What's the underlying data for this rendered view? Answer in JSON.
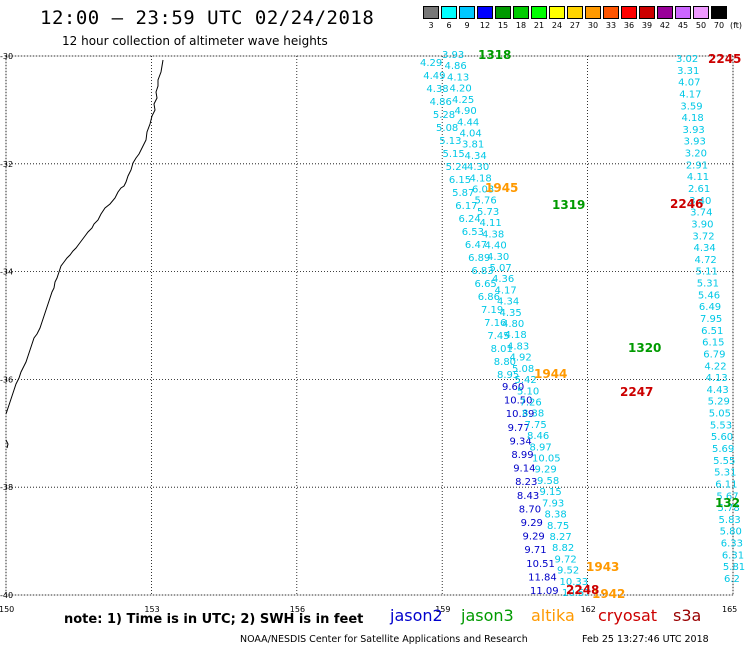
{
  "header": {
    "title": "12:00 – 23:59 UTC 02/24/2018",
    "subtitle": "12 hour collection of altimeter wave heights"
  },
  "legend": {
    "unit": "(ft)",
    "bins": [
      {
        "label": "3",
        "color": "#777777"
      },
      {
        "label": "6",
        "color": "#00ffff"
      },
      {
        "label": "9",
        "color": "#00c8ff"
      },
      {
        "label": "12",
        "color": "#0000ff"
      },
      {
        "label": "15",
        "color": "#009a00"
      },
      {
        "label": "18",
        "color": "#00cc00"
      },
      {
        "label": "21",
        "color": "#00ff00"
      },
      {
        "label": "24",
        "color": "#ffff00"
      },
      {
        "label": "27",
        "color": "#ffd400"
      },
      {
        "label": "30",
        "color": "#ff9900"
      },
      {
        "label": "33",
        "color": "#ff5500"
      },
      {
        "label": "36",
        "color": "#ff0000"
      },
      {
        "label": "39",
        "color": "#cc0000"
      },
      {
        "label": "42",
        "color": "#990099"
      },
      {
        "label": "45",
        "color": "#cc66ff"
      },
      {
        "label": "50",
        "color": "#ee99ff"
      },
      {
        "label": "70",
        "color": "#000000"
      }
    ]
  },
  "axes": {
    "lat_labels": [
      "-30",
      "-32",
      "-34",
      "-36",
      "-38",
      "-40"
    ],
    "lon_labels": [
      "150",
      "153",
      "156",
      "159",
      "162",
      "165"
    ]
  },
  "passes": [
    {
      "time": "1318",
      "sat": "jason3"
    },
    {
      "time": "1319",
      "sat": "jason3"
    },
    {
      "time": "1320",
      "sat": "jason3"
    },
    {
      "time": "132",
      "sat": "jason3"
    },
    {
      "time": "1942",
      "sat": "altika"
    },
    {
      "time": "1943",
      "sat": "altika"
    },
    {
      "time": "1944",
      "sat": "altika"
    },
    {
      "time": "1945",
      "sat": "altika"
    },
    {
      "time": "2245",
      "sat": "cryosat"
    },
    {
      "time": "2246",
      "sat": "cryosat"
    },
    {
      "time": "2247",
      "sat": "cryosat"
    },
    {
      "time": "2248",
      "sat": "cryosat"
    }
  ],
  "tracks": {
    "t1": [
      "4.29",
      "4.49",
      "4.38",
      "4.86",
      "5.28",
      "5.08",
      "5.13",
      "5.15",
      "5.24",
      "6.15",
      "5.87",
      "6.17",
      "6.24",
      "6.53",
      "6.47",
      "6.89",
      "6.83",
      "6.65",
      "6.86",
      "7.19",
      "7.16",
      "7.45",
      "8.01",
      "8.80",
      "8.95"
    ],
    "t1b": [
      "9.60",
      "10.50",
      "10.39",
      "9.77",
      "9.34",
      "8.99",
      "9.14",
      "8.23",
      "8.43",
      "8.70",
      "9.29",
      "9.29",
      "9.71",
      "10.51",
      "11.84",
      "11.09"
    ],
    "t2": [
      "3.93",
      "4.86",
      "4.13",
      "4.20",
      "4.25",
      "4.90",
      "4.44",
      "4.04",
      "3.81",
      "4.34",
      "4.30",
      "4.18",
      "6.03",
      "5.76",
      "5.73",
      "4.11",
      "4.38",
      "4.40",
      "4.30",
      "5.07",
      "4.36",
      "4.17",
      "4.34",
      "4.35",
      "4.80",
      "4.18",
      "4.83",
      "4.92",
      "5.08",
      "5.42",
      "5.10",
      "7.26",
      "8.38",
      "7.75",
      "8.46",
      "8.97",
      "10.05",
      "9.29",
      "9.58",
      "9.15",
      "7.93",
      "8.38",
      "8.75",
      "8.27",
      "8.82",
      "9.72",
      "9.52",
      "10.33",
      "10.57"
    ],
    "t3": [
      "3.02",
      "3.31",
      "4.07",
      "4.17",
      "3.59",
      "4.18",
      "3.93",
      "3.93",
      "3.20",
      "2.91",
      "4.11",
      "2.61",
      "3.40",
      "3.74",
      "3.90",
      "3.72",
      "4.34",
      "4.72",
      "5.11",
      "5.31",
      "5.46",
      "6.49",
      "7.95",
      "6.51",
      "6.15",
      "6.79",
      "4.22",
      "4.13",
      "4.43",
      "5.29",
      "5.05",
      "5.53",
      "5.60",
      "5.69",
      "5.55",
      "5.31",
      "6.11",
      "5.67",
      "5.78",
      "5.83",
      "5.80",
      "6.33",
      "6.31",
      "5.81",
      "6.2"
    ]
  },
  "satellites": [
    {
      "name": "jason2",
      "color": "#0000cc"
    },
    {
      "name": "jason3",
      "color": "#009a00"
    },
    {
      "name": "altika",
      "color": "#ff9900"
    },
    {
      "name": "cryosat",
      "color": "#cc0000"
    },
    {
      "name": "s3a",
      "color": "#990000"
    }
  ],
  "footer": {
    "note": "note: 1) Time is in UTC; 2) SWH is in feet",
    "credit": "NOAA/NESDIS Center for Satellite Applications and Research",
    "timestamp": "Feb 25 13:27:46 UTC 2018"
  }
}
